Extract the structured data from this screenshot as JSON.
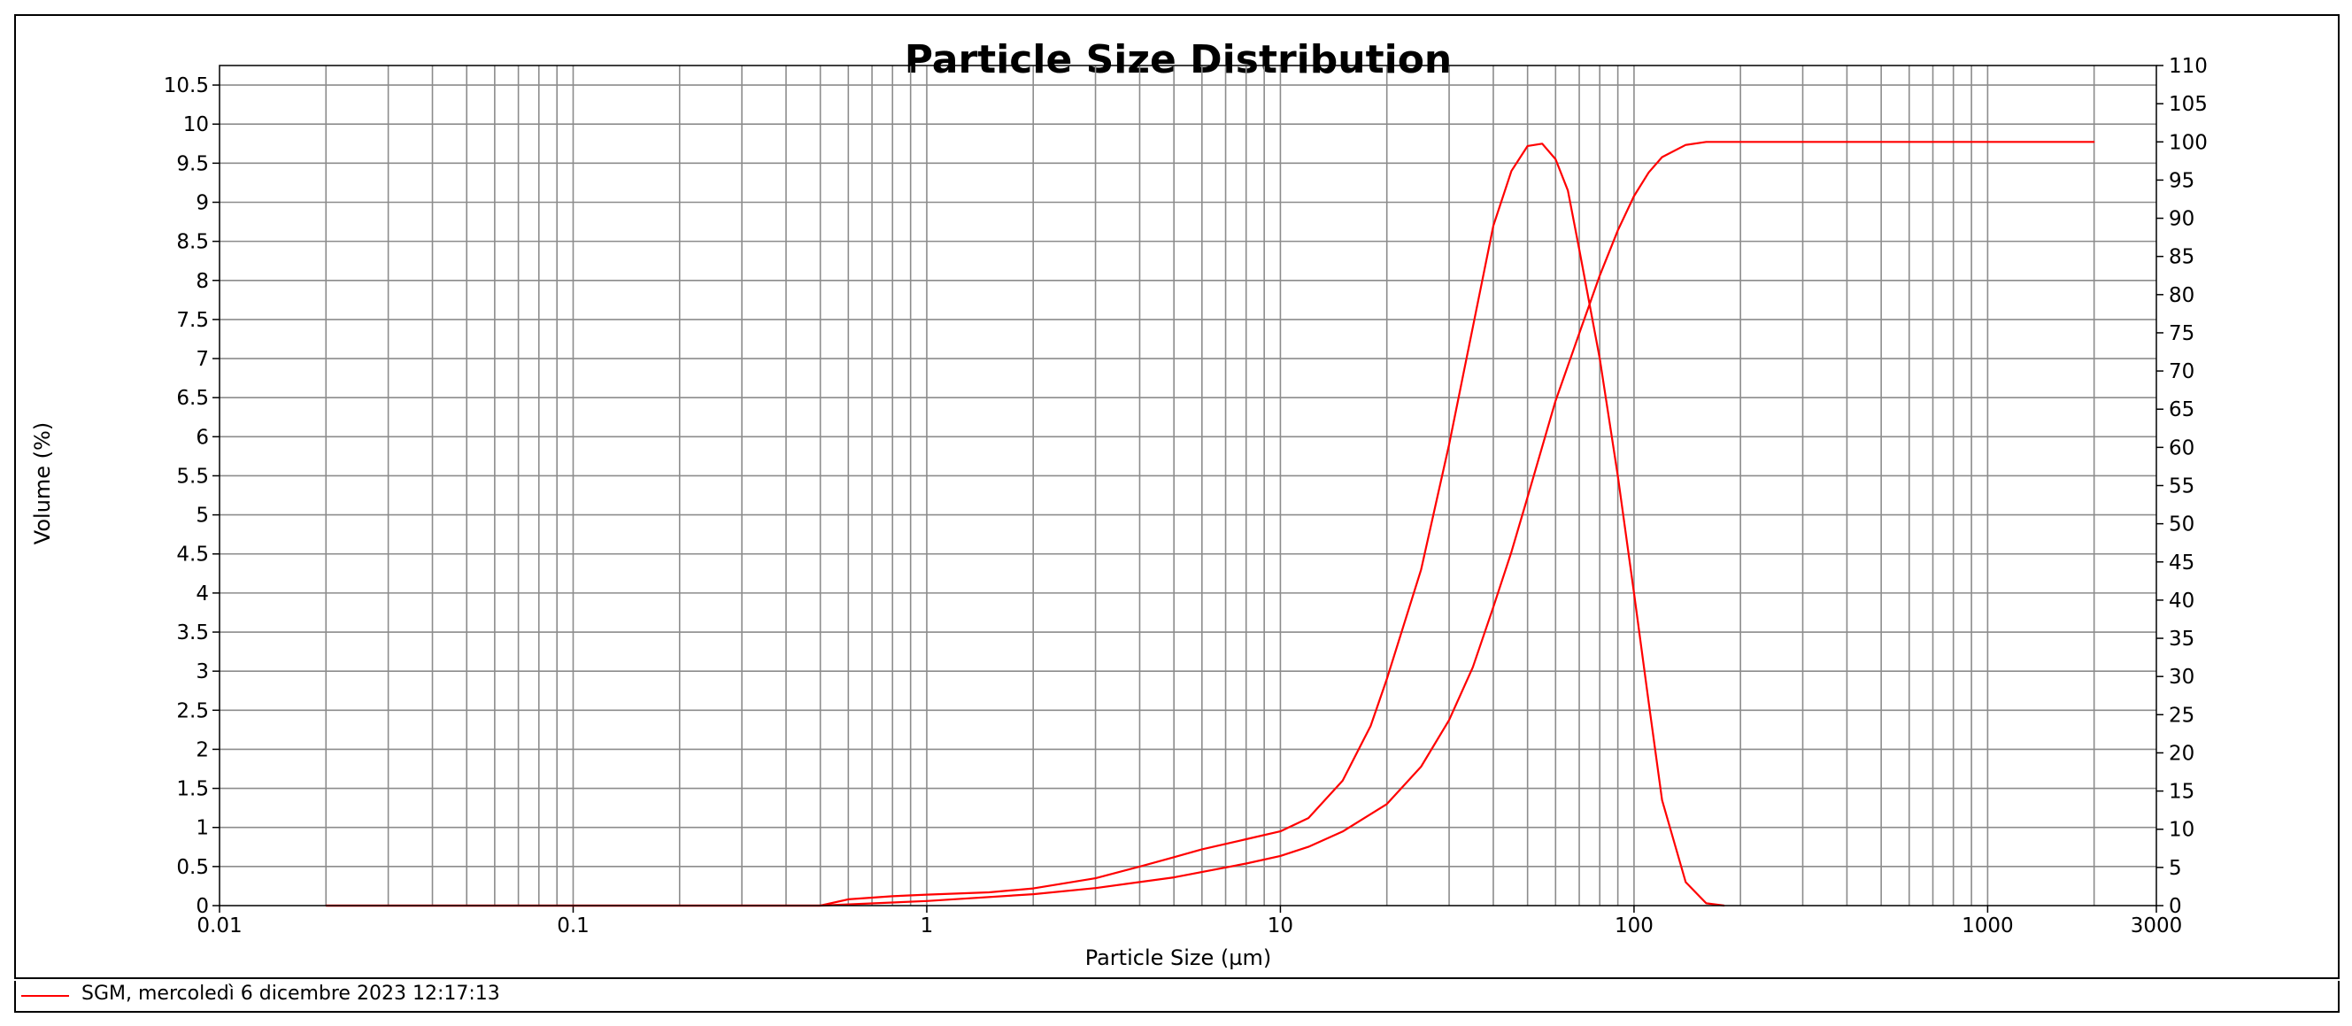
{
  "chart_data": {
    "type": "line",
    "title": "Particle Size Distribution",
    "xlabel": "Particle Size (µm)",
    "ylabel": "Volume (%)",
    "y2label": "",
    "x_scale": "log",
    "xlim": [
      0.01,
      3000
    ],
    "ylim": [
      0,
      10.75
    ],
    "y2lim": [
      0,
      110
    ],
    "grid": true,
    "x_tick_labels": [
      "0.01",
      "0.1",
      "1",
      "10",
      "100",
      "1000",
      "3000"
    ],
    "x_tick_values": [
      0.01,
      0.1,
      1,
      10,
      100,
      1000,
      3000
    ],
    "y_tick_labels": [
      "0",
      "0.5",
      "1",
      "1.5",
      "2",
      "2.5",
      "3",
      "3.5",
      "4",
      "4.5",
      "5",
      "5.5",
      "6",
      "6.5",
      "7",
      "7.5",
      "8",
      "8.5",
      "9",
      "9.5",
      "10",
      "10.5"
    ],
    "y2_tick_labels": [
      "0",
      "5",
      "10",
      "15",
      "20",
      "25",
      "30",
      "35",
      "40",
      "45",
      "50",
      "55",
      "60",
      "65",
      "70",
      "75",
      "80",
      "85",
      "90",
      "95",
      "100",
      "105",
      "110"
    ],
    "series": [
      {
        "name": "SGM, mercoledì 6 dicembre 2023 12:17:13",
        "axis": "left",
        "color": "#ff0000",
        "x": [
          0.02,
          0.5,
          0.6,
          0.8,
          1,
          1.5,
          2,
          3,
          4,
          5,
          6,
          8,
          10,
          12,
          15,
          18,
          20,
          25,
          30,
          35,
          40,
          45,
          50,
          55,
          60,
          65,
          70,
          80,
          90,
          100,
          110,
          120,
          140,
          160,
          180
        ],
        "y": [
          0,
          0,
          0.08,
          0.12,
          0.14,
          0.17,
          0.22,
          0.35,
          0.5,
          0.62,
          0.72,
          0.85,
          0.95,
          1.12,
          1.6,
          2.3,
          2.9,
          4.3,
          5.9,
          7.4,
          8.7,
          9.4,
          9.72,
          9.75,
          9.55,
          9.15,
          8.4,
          7.0,
          5.5,
          4.0,
          2.6,
          1.35,
          0.3,
          0.03,
          0
        ]
      },
      {
        "name": "SGM, mercoledì 6 dicembre 2023 12:17:13",
        "axis": "right",
        "color": "#ff0000",
        "x": [
          0.02,
          0.5,
          1,
          2,
          3,
          5,
          8,
          10,
          12,
          15,
          20,
          25,
          30,
          35,
          40,
          45,
          50,
          60,
          70,
          80,
          90,
          100,
          110,
          120,
          140,
          160,
          200,
          500,
          1000,
          2000
        ],
        "y": [
          0,
          0,
          0.6,
          1.5,
          2.3,
          3.7,
          5.5,
          6.5,
          7.7,
          9.7,
          13.3,
          18.2,
          24.3,
          31.2,
          39.1,
          46.3,
          53.5,
          66.1,
          74.9,
          82.5,
          88.4,
          92.9,
          96.0,
          98.0,
          99.6,
          100,
          100,
          100,
          100,
          100
        ]
      }
    ],
    "legend": {
      "position": "bottom",
      "entries": [
        "SGM, mercoledì 6 dicembre 2023 12:17:13"
      ]
    }
  }
}
